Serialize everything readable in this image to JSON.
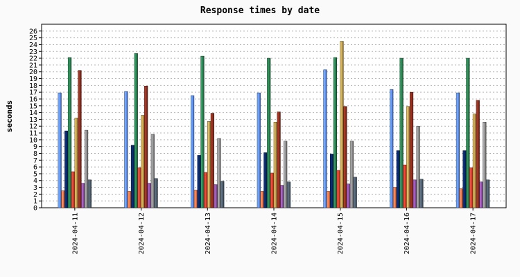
{
  "chart_data": {
    "type": "bar",
    "title": "Response times by date",
    "ylabel": "seconds",
    "xlabel": "",
    "ylim": [
      0,
      27
    ],
    "yticks": [
      0,
      1,
      2,
      3,
      4,
      5,
      6,
      7,
      8,
      9,
      10,
      11,
      12,
      13,
      14,
      15,
      16,
      17,
      18,
      19,
      20,
      21,
      22,
      23,
      24,
      25,
      26
    ],
    "grid": true,
    "legend": "none",
    "categories": [
      "2024-04-11",
      "2024-04-12",
      "2024-04-13",
      "2024-04-14",
      "2024-04-15",
      "2024-04-16",
      "2024-04-17"
    ],
    "series": [
      {
        "color": "#6699ff",
        "values": [
          16.9,
          17.1,
          16.5,
          16.9,
          20.3,
          17.4,
          16.9
        ]
      },
      {
        "color": "#ff7f50",
        "values": [
          2.5,
          2.4,
          2.6,
          2.4,
          2.4,
          3.0,
          2.8
        ]
      },
      {
        "color": "#0a2a6e",
        "values": [
          11.3,
          9.2,
          7.7,
          8.1,
          7.9,
          8.4,
          8.4
        ]
      },
      {
        "color": "#2e8b57",
        "values": [
          22.1,
          22.7,
          22.3,
          22.0,
          22.1,
          22.0,
          22.0
        ]
      },
      {
        "color": "#ee4433",
        "values": [
          5.3,
          5.9,
          5.2,
          5.1,
          5.5,
          6.3,
          5.9
        ]
      },
      {
        "color": "#ccaa55",
        "values": [
          13.2,
          13.6,
          12.7,
          12.6,
          24.5,
          14.9,
          13.8
        ]
      },
      {
        "color": "#993322",
        "values": [
          20.2,
          17.9,
          13.9,
          14.1,
          14.9,
          17.0,
          15.8
        ]
      },
      {
        "color": "#9b59b6",
        "values": [
          3.6,
          3.6,
          3.4,
          3.3,
          3.5,
          4.1,
          3.8
        ]
      },
      {
        "color": "#999999",
        "values": [
          11.4,
          10.8,
          10.2,
          9.8,
          9.8,
          12.0,
          12.6
        ]
      },
      {
        "color": "#556677",
        "values": [
          4.1,
          4.3,
          3.9,
          3.8,
          4.5,
          4.2,
          4.1
        ]
      }
    ]
  }
}
